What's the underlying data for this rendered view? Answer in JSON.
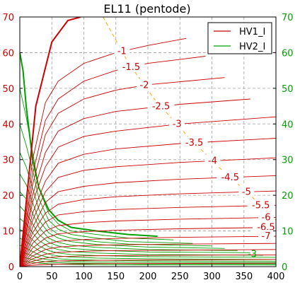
{
  "chart_data": {
    "type": "line",
    "title": "EL11 (pentode)",
    "xlim": [
      0,
      400
    ],
    "ylim_left": [
      0,
      70
    ],
    "ylim_right": [
      0,
      70
    ],
    "xticks": [
      "0",
      "50",
      "100",
      "150",
      "200",
      "250",
      "300",
      "350",
      "400"
    ],
    "yticks_left": [
      "0",
      "10",
      "20",
      "30",
      "40",
      "50",
      "60",
      "70"
    ],
    "yticks_right": [
      "0",
      "10",
      "20",
      "30",
      "40",
      "50",
      "60",
      "70"
    ],
    "grid": true,
    "legend": {
      "placement": "top-right",
      "entries": [
        {
          "label": "HV1_I",
          "color": "#cc0000"
        },
        {
          "label": "HV2_I",
          "color": "#00a000"
        }
      ]
    },
    "colors": {
      "hv1": "#cc0000",
      "hv2": "#00a000",
      "load_line": "#ffa500",
      "right_axis": "#00a000"
    },
    "grid_bias_curves": [
      {
        "label": "",
        "x": [
          0,
          25,
          50,
          75,
          95
        ],
        "y": [
          0,
          45,
          63,
          69,
          70
        ]
      },
      {
        "label": "-1",
        "x": [
          0,
          20,
          40,
          60,
          100,
          150,
          200,
          260
        ],
        "y": [
          0,
          30,
          46,
          52,
          57,
          60,
          62,
          64
        ]
      },
      {
        "label": "-1.5",
        "x": [
          0,
          20,
          40,
          60,
          100,
          150,
          200,
          290
        ],
        "y": [
          0,
          26,
          41,
          47,
          52,
          55,
          57,
          59
        ]
      },
      {
        "label": "-2",
        "x": [
          0,
          20,
          40,
          60,
          100,
          150,
          200,
          320
        ],
        "y": [
          0,
          23,
          37,
          43,
          47,
          49.5,
          51,
          53
        ]
      },
      {
        "label": "-2.5",
        "x": [
          0,
          20,
          40,
          60,
          100,
          150,
          250,
          360
        ],
        "y": [
          0,
          20,
          32,
          38,
          41.5,
          43.5,
          45.5,
          47
        ]
      },
      {
        "label": "-3",
        "x": [
          0,
          20,
          40,
          60,
          100,
          150,
          250,
          400
        ],
        "y": [
          0,
          18,
          28,
          33.5,
          36.5,
          38,
          40,
          42
        ]
      },
      {
        "label": "-3.5",
        "x": [
          0,
          20,
          40,
          60,
          100,
          150,
          250,
          400
        ],
        "y": [
          0,
          15,
          24,
          29,
          31.5,
          33,
          34.5,
          36
        ]
      },
      {
        "label": "-4",
        "x": [
          0,
          20,
          40,
          60,
          100,
          150,
          250,
          400
        ],
        "y": [
          0,
          13,
          21,
          25,
          27,
          28,
          29.2,
          30.5
        ]
      },
      {
        "label": "-4.5",
        "x": [
          0,
          20,
          40,
          60,
          100,
          150,
          250,
          400
        ],
        "y": [
          0,
          11,
          18,
          21,
          22.5,
          23.5,
          24.5,
          25.5
        ]
      },
      {
        "label": "-5",
        "x": [
          0,
          20,
          40,
          60,
          100,
          150,
          250,
          400
        ],
        "y": [
          0,
          9.5,
          15,
          17.5,
          18.8,
          19.6,
          20.4,
          21.2
        ]
      },
      {
        "label": "-5.5",
        "x": [
          0,
          20,
          40,
          60,
          100,
          150,
          250,
          400
        ],
        "y": [
          0,
          8,
          12.5,
          14.5,
          15.4,
          16,
          16.6,
          17.2
        ]
      },
      {
        "label": "-6",
        "x": [
          0,
          20,
          40,
          60,
          100,
          150,
          250,
          400
        ],
        "y": [
          0,
          6.5,
          10,
          11.5,
          12.3,
          12.8,
          13.3,
          13.8
        ]
      },
      {
        "label": "-6.5",
        "x": [
          0,
          20,
          40,
          60,
          100,
          150,
          250,
          400
        ],
        "y": [
          0,
          5.2,
          8,
          9.2,
          9.8,
          10.2,
          10.6,
          11
        ]
      },
      {
        "label": "-7",
        "x": [
          0,
          20,
          40,
          60,
          100,
          150,
          250,
          400
        ],
        "y": [
          0,
          4,
          6.2,
          7.1,
          7.6,
          7.9,
          8.2,
          8.5
        ]
      },
      {
        "label": "",
        "x": [
          0,
          20,
          40,
          60,
          100,
          150,
          250,
          400
        ],
        "y": [
          0,
          3,
          4.8,
          5.5,
          5.9,
          6.1,
          6.3,
          6.5
        ]
      },
      {
        "label": "",
        "x": [
          0,
          20,
          40,
          60,
          100,
          150,
          250,
          400
        ],
        "y": [
          0,
          2.2,
          3.5,
          4,
          4.3,
          4.5,
          4.6,
          4.8
        ]
      },
      {
        "label": "",
        "x": [
          0,
          20,
          40,
          60,
          100,
          150,
          250,
          400
        ],
        "y": [
          0,
          1.5,
          2.4,
          2.8,
          3,
          3.1,
          3.2,
          3.3
        ]
      },
      {
        "label": "",
        "x": [
          0,
          20,
          40,
          60,
          100,
          150,
          250,
          400
        ],
        "y": [
          0,
          0.9,
          1.4,
          1.6,
          1.7,
          1.8,
          1.9,
          2
        ]
      },
      {
        "label": "",
        "x": [
          0,
          20,
          40,
          60,
          100,
          150,
          250,
          400
        ],
        "y": [
          0,
          0.4,
          0.6,
          0.7,
          0.8,
          0.85,
          0.9,
          0.95
        ]
      }
    ],
    "screen_curves": [
      {
        "x": [
          0,
          5,
          10,
          20,
          30,
          45,
          60,
          80,
          120,
          170,
          215
        ],
        "y": [
          60,
          55,
          45,
          30,
          22,
          16,
          13,
          11,
          10,
          9,
          8.5
        ]
      },
      {
        "x": [
          0,
          10,
          20,
          30,
          45,
          60,
          80,
          120,
          170,
          240
        ],
        "y": [
          50,
          42,
          32,
          22,
          15,
          12,
          10,
          9,
          8,
          7.5
        ]
      },
      {
        "x": [
          0,
          10,
          20,
          30,
          45,
          60,
          80,
          120,
          170,
          270
        ],
        "y": [
          40,
          34,
          27,
          19,
          13,
          10.5,
          9,
          8,
          7,
          6.5
        ]
      },
      {
        "x": [
          0,
          10,
          20,
          30,
          45,
          60,
          80,
          120,
          170,
          300
        ],
        "y": [
          32,
          28,
          22,
          16,
          11,
          9,
          8,
          7,
          6.3,
          5.8
        ]
      },
      {
        "x": [
          0,
          10,
          20,
          30,
          45,
          60,
          80,
          120,
          200,
          320
        ],
        "y": [
          26,
          23,
          18,
          13,
          9.5,
          8,
          7,
          6.2,
          5.5,
          5.1
        ]
      },
      {
        "x": [
          0,
          10,
          20,
          30,
          45,
          60,
          80,
          120,
          200,
          340
        ],
        "y": [
          21,
          19,
          15,
          11,
          8,
          6.8,
          6,
          5.4,
          4.8,
          4.5
        ]
      },
      {
        "x": [
          0,
          10,
          20,
          30,
          45,
          60,
          80,
          120,
          200,
          360
        ],
        "y": [
          17,
          15,
          12,
          9,
          6.8,
          5.8,
          5.1,
          4.6,
          4.1,
          3.9
        ]
      },
      {
        "x": [
          0,
          10,
          20,
          30,
          45,
          60,
          80,
          120,
          200,
          380
        ],
        "y": [
          13.5,
          12,
          9.5,
          7.3,
          5.6,
          4.8,
          4.2,
          3.8,
          3.4,
          3.2
        ]
      },
      {
        "x": [
          0,
          10,
          20,
          30,
          45,
          60,
          80,
          120,
          200,
          400
        ],
        "y": [
          10.5,
          9.3,
          7.5,
          5.8,
          4.5,
          3.8,
          3.4,
          3.1,
          2.8,
          2.6
        ]
      },
      {
        "x": [
          0,
          10,
          20,
          30,
          45,
          60,
          80,
          120,
          200,
          400
        ],
        "y": [
          8,
          7,
          5.7,
          4.5,
          3.5,
          3,
          2.7,
          2.4,
          2.2,
          2
        ]
      },
      {
        "x": [
          0,
          10,
          20,
          30,
          45,
          60,
          80,
          120,
          200,
          400
        ],
        "y": [
          6,
          5.2,
          4.2,
          3.3,
          2.6,
          2.2,
          2,
          1.8,
          1.6,
          1.5
        ]
      },
      {
        "x": [
          0,
          10,
          20,
          30,
          45,
          60,
          80,
          120,
          200,
          400
        ],
        "y": [
          4.2,
          3.7,
          3,
          2.4,
          1.9,
          1.6,
          1.45,
          1.3,
          1.2,
          1.1
        ]
      },
      {
        "x": [
          0,
          10,
          20,
          30,
          45,
          60,
          80,
          120,
          200,
          400
        ],
        "y": [
          2.8,
          2.4,
          2,
          1.6,
          1.3,
          1.1,
          1,
          0.9,
          0.8,
          0.75
        ]
      },
      {
        "x": [
          0,
          10,
          20,
          30,
          45,
          60,
          80,
          120,
          200,
          400
        ],
        "y": [
          1.6,
          1.4,
          1.2,
          1,
          0.8,
          0.7,
          0.62,
          0.55,
          0.5,
          0.45
        ]
      }
    ],
    "load_line": {
      "x": [
        130,
        170,
        210,
        260,
        310,
        360,
        400
      ],
      "y": [
        70,
        57,
        47,
        37,
        28,
        20,
        13
      ]
    },
    "annotations": [
      {
        "text": "-3",
        "x": 363,
        "y": 3.5,
        "color": "#00a000"
      }
    ]
  }
}
